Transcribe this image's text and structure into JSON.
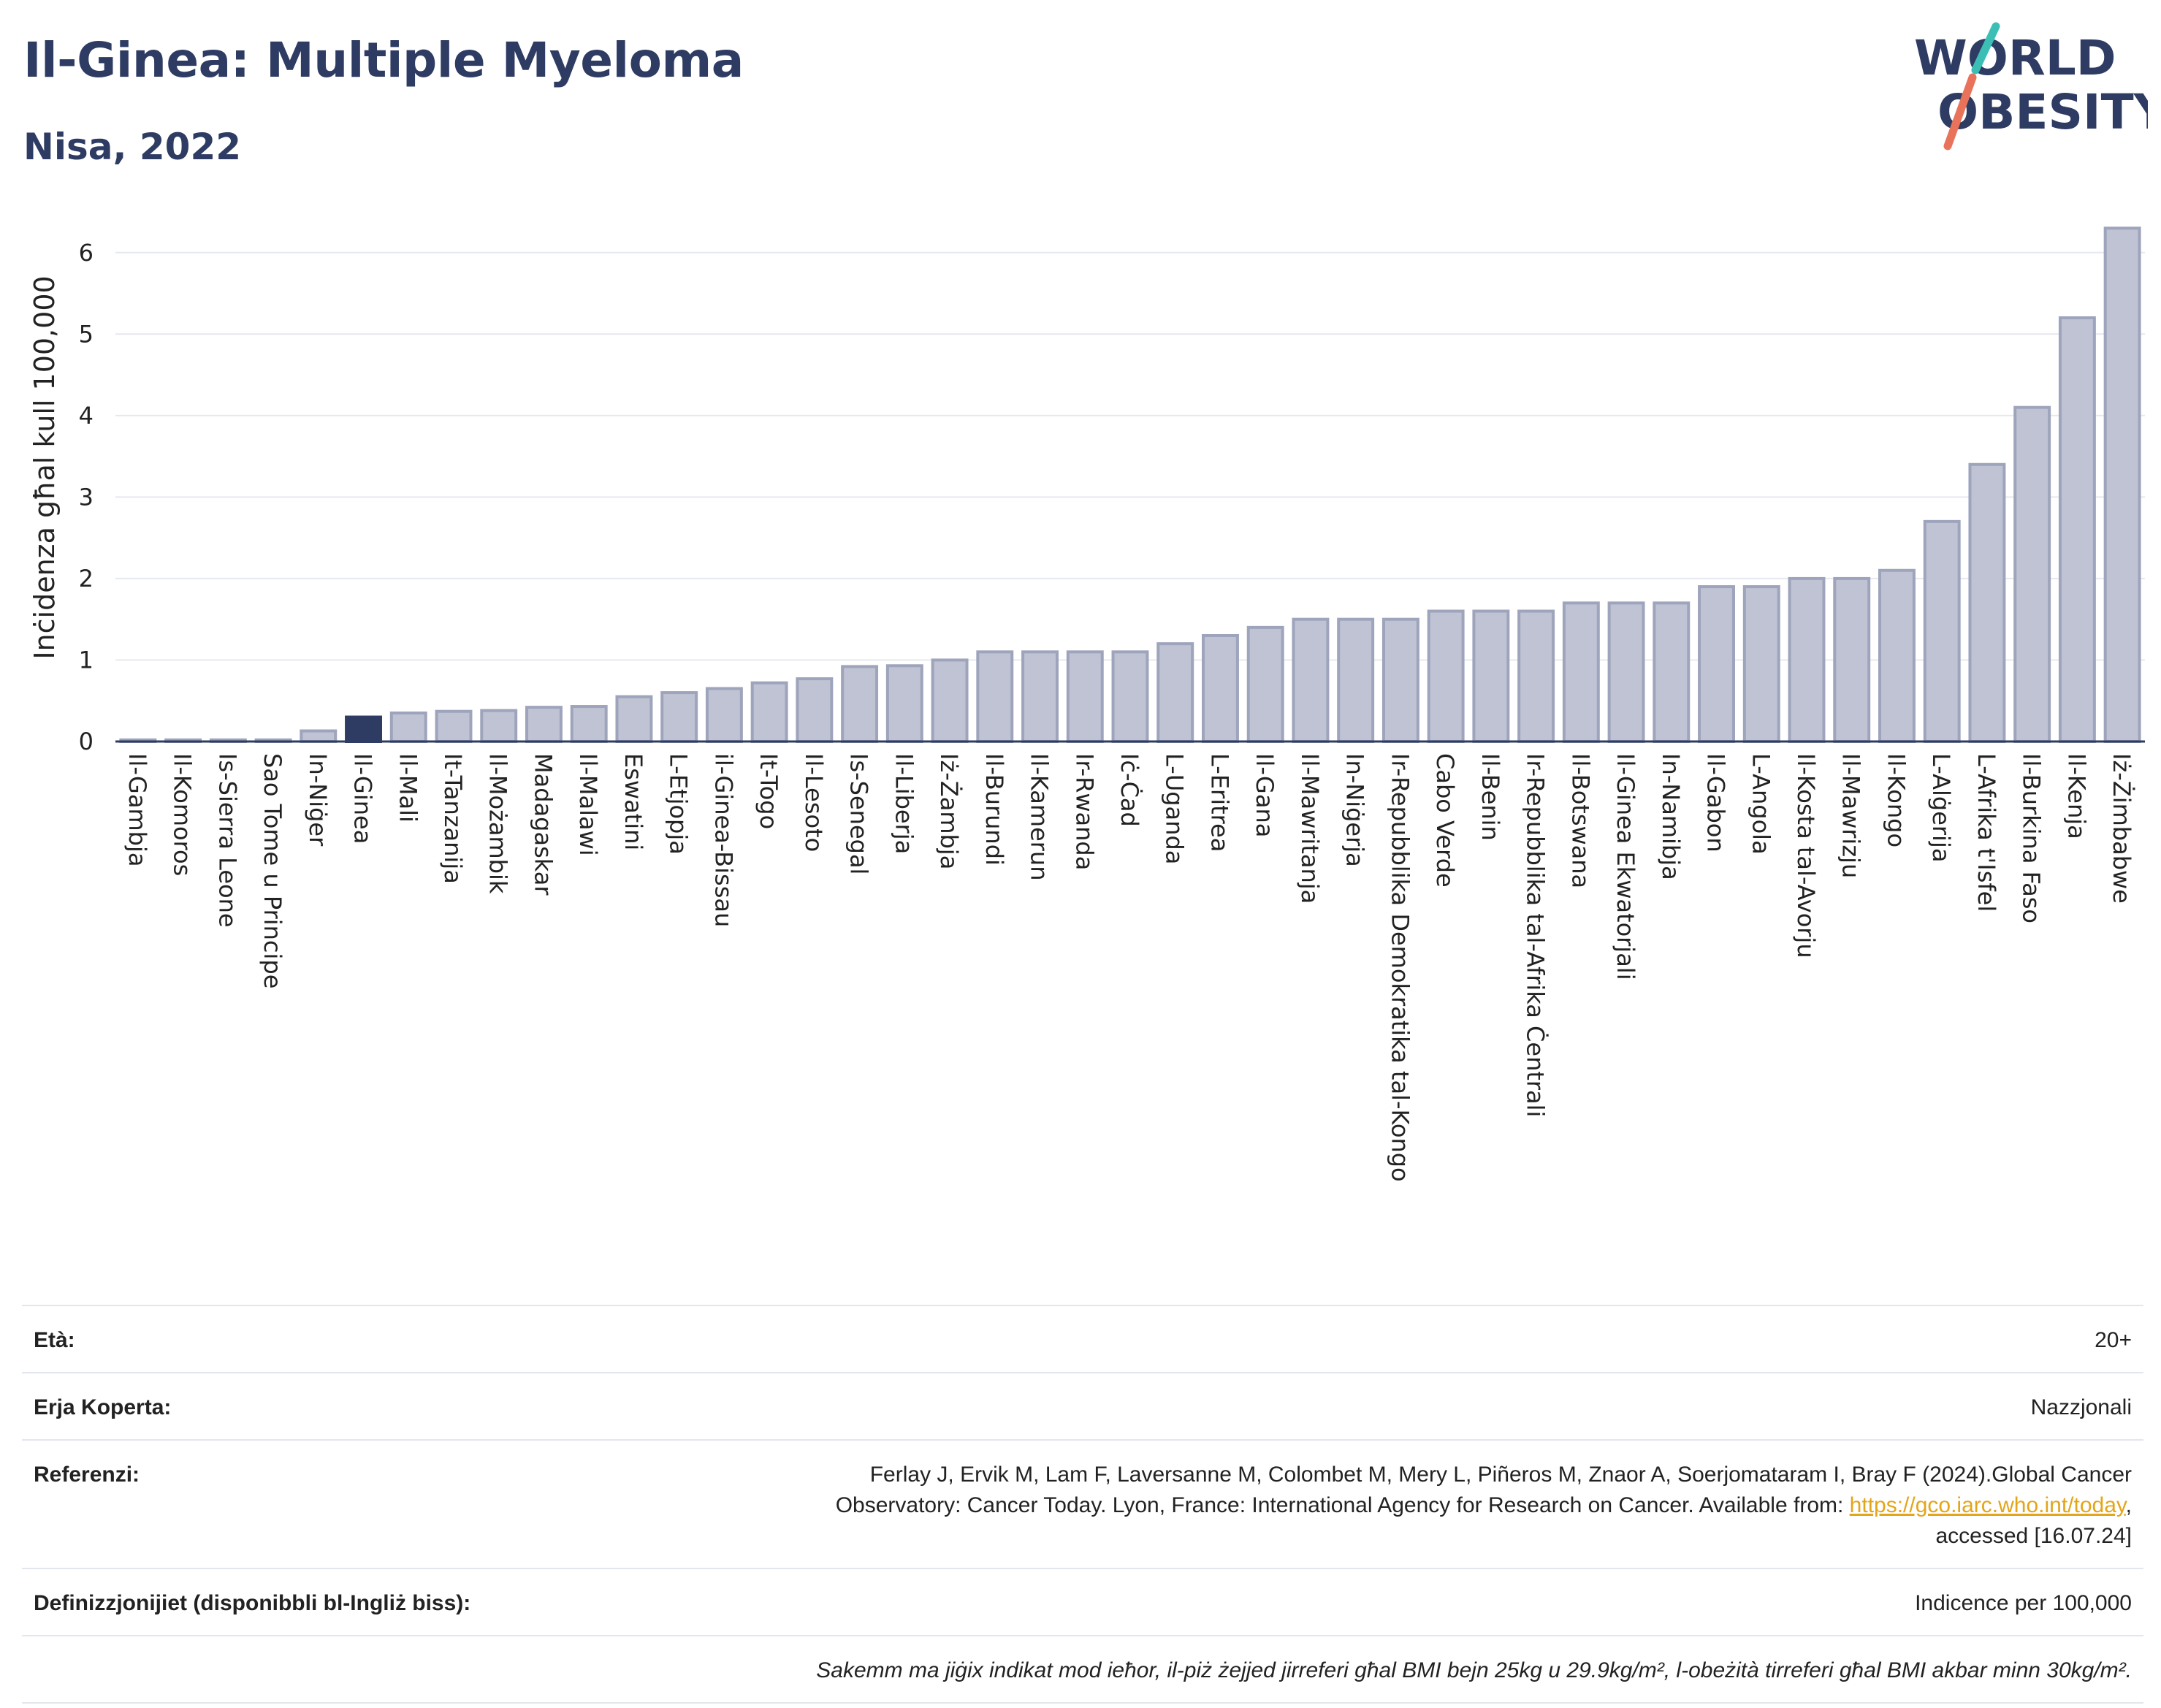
{
  "header": {
    "title": "Il-Ginea: Multiple Myeloma",
    "subtitle": "Nisa, 2022",
    "logo_line1": "WORLD",
    "logo_line2": "OBESITY"
  },
  "colors": {
    "title": "#2e3b63",
    "bar_default": "#bfc3d3",
    "bar_default_border": "#9ea4bb",
    "bar_highlight": "#2e3b63",
    "link": "#e3a51a",
    "logo_slash_teal": "#3bbfb5",
    "logo_slash_coral": "#e8735a"
  },
  "chart_data": {
    "type": "bar",
    "ylabel": "Inċidenza għal kull 100,000",
    "xlabel": "",
    "ylim": [
      0,
      6.5
    ],
    "yticks": [
      0,
      1,
      2,
      3,
      4,
      5,
      6
    ],
    "grid": true,
    "highlight": "Il-Ginea",
    "categories": [
      "Il-Gambja",
      "Il-Komoros",
      "Is-Sierra Leone",
      "Sao Tome u Principe",
      "In-Niġer",
      "Il-Ginea",
      "Il-Mali",
      "It-Tanzanija",
      "Il-Możambik",
      "Madagaskar",
      "Il-Malawi",
      "Eswatini",
      "L-Etjopja",
      "il-Ginea-Bissau",
      "It-Togo",
      "Il-Lesoto",
      "Is-Senegal",
      "Il-Liberja",
      "Iż-Żambja",
      "Il-Burundi",
      "Il-Kamerun",
      "Ir-Rwanda",
      "Iċ-Ċad",
      "L-Uganda",
      "L-Eritrea",
      "Il-Gana",
      "Il-Mawritanja",
      "In-Niġerja",
      "Ir-Repubblika Demokratika tal-Kongo",
      "Cabo Verde",
      "Il-Benin",
      "Ir-Repubblika tal-Afrika Ċentrali",
      "Il-Botswana",
      "Il-Ginea Ekwatorjali",
      "In-Namibja",
      "Il-Gabon",
      "L-Angola",
      "Il-Kosta tal-Avorju",
      "Il-Mawrizju",
      "Il-Kongo",
      "L-Alġerija",
      "L-Afrika t'Isfel",
      "Il-Burkina Faso",
      "Il-Kenja",
      "Iż-Żimbabwe"
    ],
    "values": [
      0.02,
      0.02,
      0.02,
      0.02,
      0.13,
      0.3,
      0.35,
      0.37,
      0.38,
      0.42,
      0.43,
      0.55,
      0.6,
      0.65,
      0.72,
      0.77,
      0.92,
      0.93,
      1.0,
      1.1,
      1.1,
      1.1,
      1.1,
      1.2,
      1.3,
      1.4,
      1.5,
      1.5,
      1.5,
      1.6,
      1.6,
      1.6,
      1.7,
      1.7,
      1.7,
      1.9,
      1.9,
      2.0,
      2.0,
      2.1,
      2.7,
      3.4,
      4.1,
      5.2,
      6.3
    ]
  },
  "info": {
    "age_label": "Età:",
    "age_value": "20+",
    "coverage_label": "Erja Koperta:",
    "coverage_value": "Nazzjonali",
    "references_label": "Referenzi:",
    "references_line1": "Ferlay J, Ervik M, Lam F, Laversanne M, Colombet M, Mery L, Piñeros M, Znaor A, Soerjomataram I, Bray F (2024).Global Cancer",
    "references_line2_pre": "Observatory: Cancer Today. Lyon, France: International Agency for Research on Cancer. Available from: ",
    "references_link": "https://gco.iarc.who.int/today",
    "references_line2_post": ",",
    "references_line3": "accessed [16.07.24]",
    "definitions_label": "Definizzjonijiet (disponibbli bl-Ingliż biss):",
    "definitions_value": "Indicence per 100,000",
    "note": "Sakemm ma jiġix indikat mod ieħor, il-piż żejjed jirreferi għal BMI bejn 25kg u 29.9kg/m², l-obeżità tirreferi għal BMI akbar minn 30kg/m²."
  }
}
